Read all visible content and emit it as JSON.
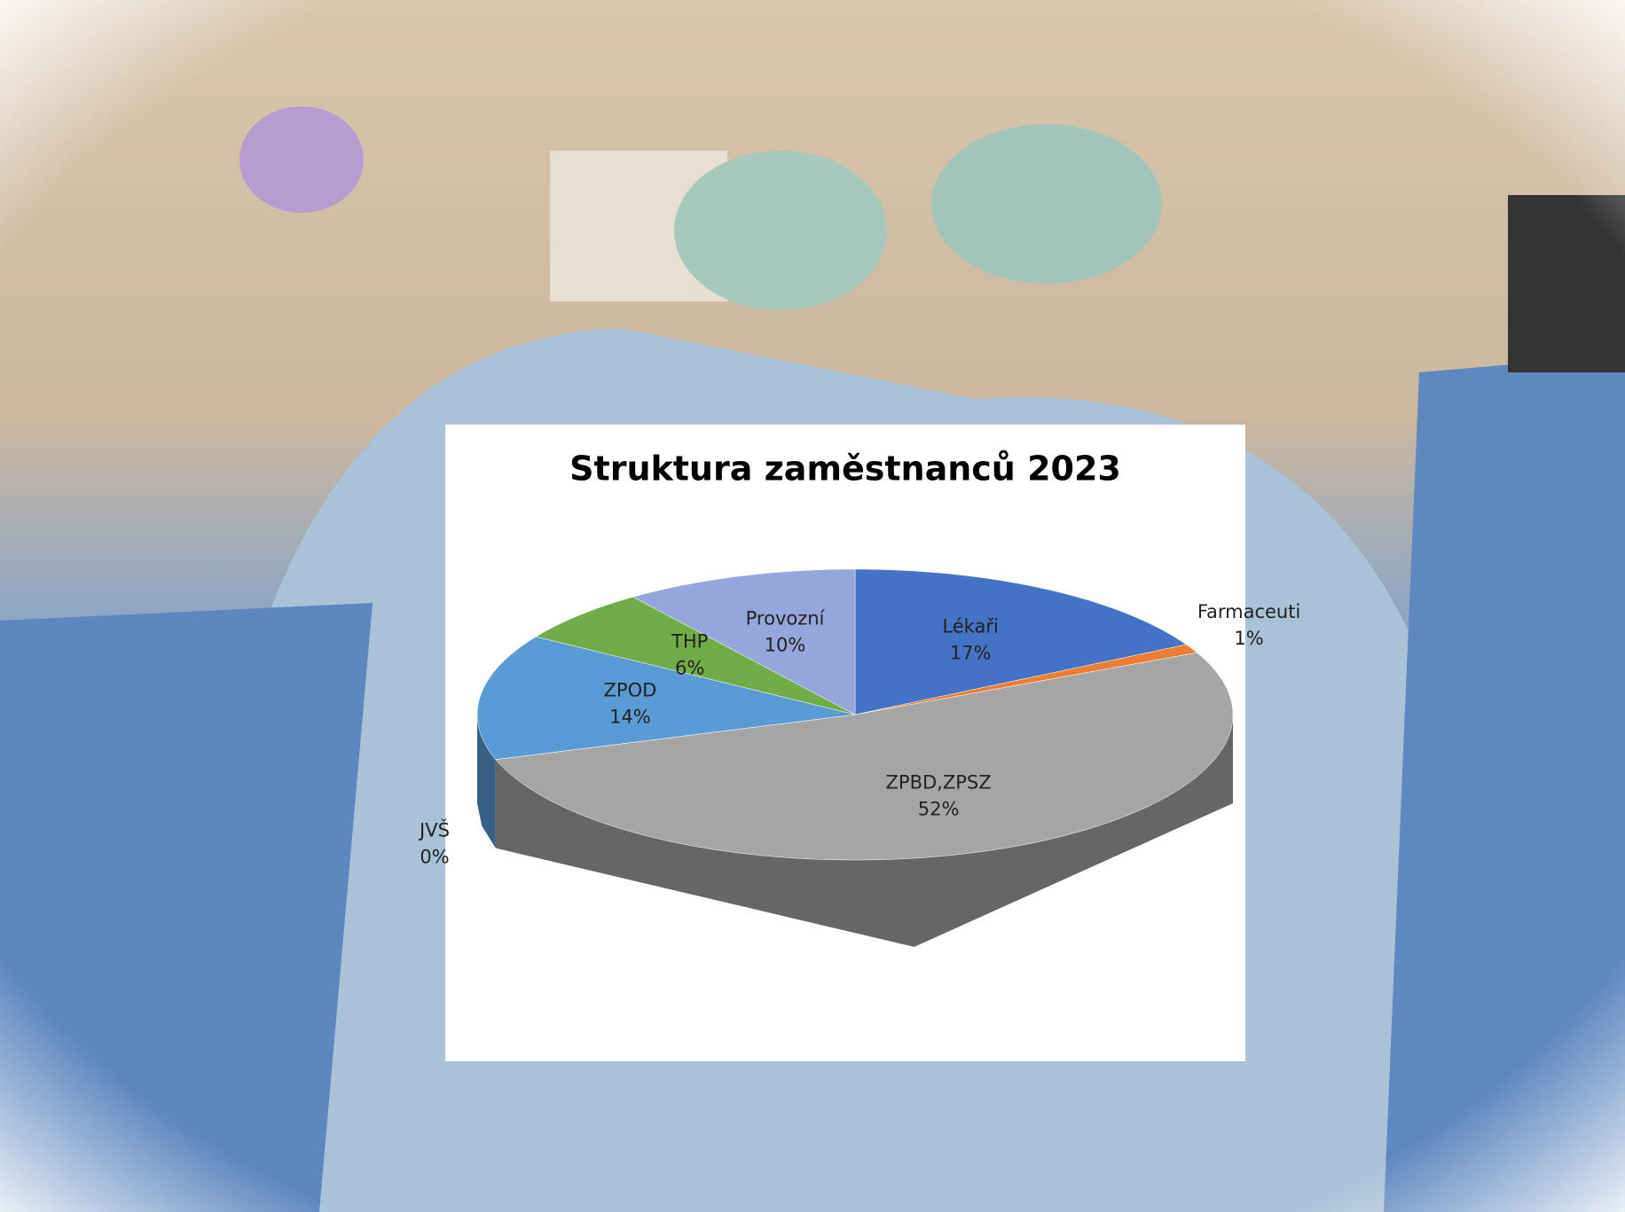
{
  "chart_data": {
    "type": "pie3d",
    "title": "Struktura zaměstnanců 2023",
    "categories": [
      "Lékaři",
      "Farmaceuti",
      "ZPBD,ZPSZ",
      "JVŠ",
      "ZPOD",
      "THP",
      "Provozní"
    ],
    "values": [
      17,
      1,
      52,
      0,
      14,
      6,
      10
    ],
    "value_labels": [
      "17%",
      "1%",
      "52%",
      "0%",
      "14%",
      "6%",
      "10%"
    ],
    "colors": [
      "#4472c4",
      "#ed7d31",
      "#a5a5a5",
      "#ffc000",
      "#5b9bd5",
      "#70ad47",
      "#95a6dd"
    ]
  }
}
